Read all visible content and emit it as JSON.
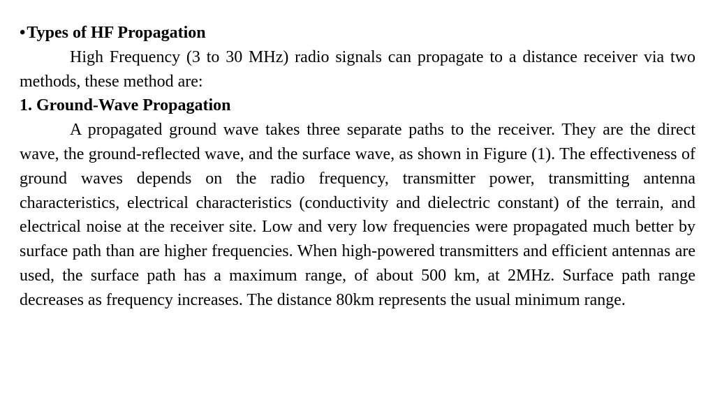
{
  "heading": {
    "bullet": "•",
    "text": "Types of HF Propagation"
  },
  "intro": "High Frequency (3 to 30 MHz) radio signals can propagate to a distance receiver  via two methods, these method are:",
  "section1": {
    "number": "1.",
    "title": "Ground-Wave Propagation"
  },
  "body": "A propagated ground wave takes three separate paths to the receiver. They are the direct wave, the ground-reflected wave, and the surface wave, as shown in Figure (1). The effectiveness of ground waves depends on the radio frequency, transmitter power, transmitting antenna characteristics, electrical characteristics (conductivity and dielectric constant) of the terrain, and electrical noise at the receiver site. Low and very low frequencies were propagated much better by surface path than are higher frequencies. When high-powered transmitters and efficient antennas are used, the surface path has a maximum range, of about 500 km, at 2MHz. Surface path range decreases as frequency increases. The distance 80km represents the usual minimum range.",
  "colors": {
    "text": "#000000",
    "background": "#ffffff"
  },
  "typography": {
    "font_family": "Times New Roman",
    "font_size_pt": 18,
    "line_height": 1.45,
    "heading_weight": "bold",
    "body_weight": "normal",
    "alignment": "justify"
  }
}
